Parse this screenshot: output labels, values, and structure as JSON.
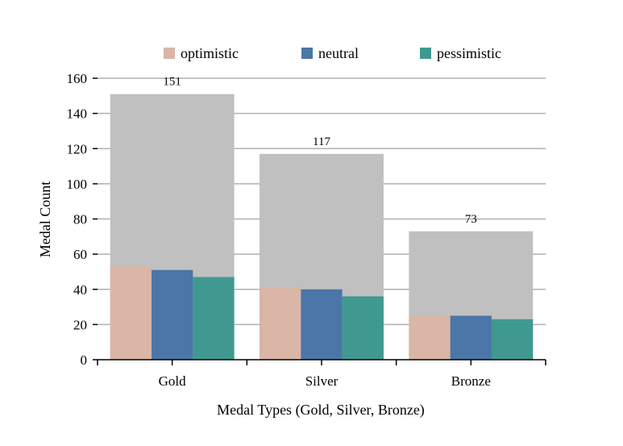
{
  "chart_data": {
    "type": "bar",
    "title": "",
    "xlabel": "Medal Types (Gold, Silver, Bronze)",
    "ylabel": "Medal Count",
    "ylim": [
      0,
      160
    ],
    "yticks": [
      "0",
      "20",
      "40",
      "60",
      "80",
      "100",
      "120",
      "140",
      "160"
    ],
    "categories": [
      "Gold",
      "Silver",
      "Bronze"
    ],
    "totals": [
      151,
      117,
      73
    ],
    "total_labels": [
      "151",
      "117",
      "73"
    ],
    "total_color": "#c0c0c0",
    "series": [
      {
        "name": "optimistic",
        "values": [
          53,
          41,
          25
        ],
        "color": "#d9b6a6"
      },
      {
        "name": "neutral",
        "values": [
          51,
          40,
          25
        ],
        "color": "#4a76a8"
      },
      {
        "name": "pessimistic",
        "values": [
          47,
          36,
          23
        ],
        "color": "#409990"
      }
    ],
    "legend_position": "top",
    "grid": true
  }
}
